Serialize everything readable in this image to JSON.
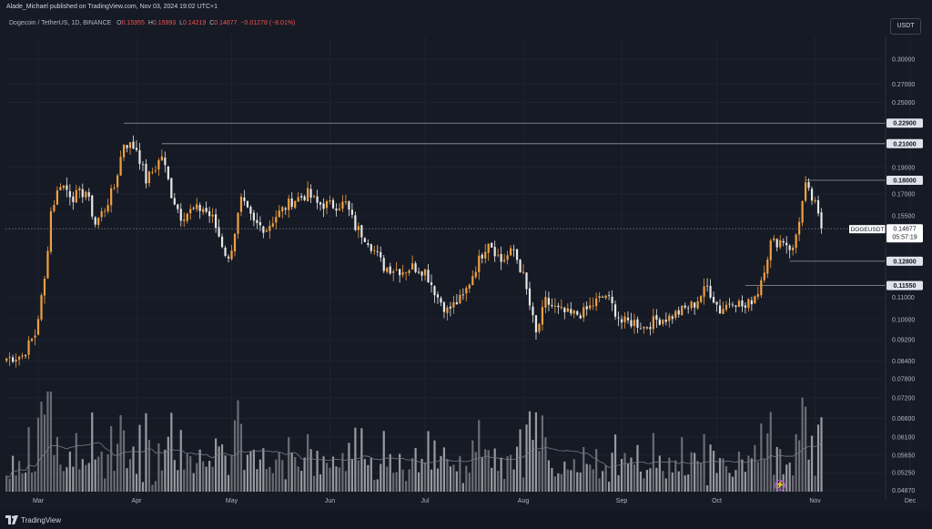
{
  "header": {
    "publisher": "Alade_Michael published on TradingView.com, Nov 03, 2024 19:02 UTC+1"
  },
  "legend": {
    "symbol": "Dogecoin / TetherUS, 1D, BINANCE",
    "open_label": "O",
    "open": "0.15955",
    "high_label": "H",
    "high": "0.15993",
    "low_label": "L",
    "low": "0.14219",
    "close_label": "C",
    "close": "0.14677",
    "change": "−0.01278 (−8.01%)"
  },
  "currency_button": "USDT",
  "footer": {
    "brand": "TradingView"
  },
  "colors": {
    "background": "#161a25",
    "up": "#f0a040",
    "down": "#e8e8e8",
    "grid": "#1f2330",
    "level_line": "#9598a1",
    "volume_up": "#7a7a80",
    "volume_down": "#b0b0b5",
    "volume_ma": "#777b85",
    "accent_bolt": "#b24dd3"
  },
  "icons": {
    "logo": "tradingview-logo-icon",
    "bolt": "lightning-bolt-icon"
  },
  "chart_data": {
    "type": "candlestick",
    "symbol": "DOGEUSDT",
    "interval": "1D",
    "y_scale": "log",
    "ylim": [
      0.047,
      0.33
    ],
    "y_ticks": [
      "0.30000",
      "0.27000",
      "0.25000",
      "0.19000",
      "0.17000",
      "0.15500",
      "0.11000",
      "0.10000",
      "0.09200",
      "0.08400",
      "0.07800",
      "0.07200",
      "0.06600",
      "0.06100",
      "0.05650",
      "0.05250",
      "0.04870"
    ],
    "x_labels": [
      {
        "label": "Mar",
        "date": "2024-03-01"
      },
      {
        "label": "Apr",
        "date": "2024-04-01"
      },
      {
        "label": "May",
        "date": "2024-05-01"
      },
      {
        "label": "Jun",
        "date": "2024-06-01"
      },
      {
        "label": "Jul",
        "date": "2024-07-01"
      },
      {
        "label": "Aug",
        "date": "2024-08-01"
      },
      {
        "label": "Sep",
        "date": "2024-09-01"
      },
      {
        "label": "Oct",
        "date": "2024-10-01"
      },
      {
        "label": "Nov",
        "date": "2024-11-01"
      },
      {
        "label": "Dec",
        "date": "2024-12-01"
      }
    ],
    "horizontal_levels": [
      {
        "price": 0.229,
        "label": "0.22900",
        "from": "2024-03-28"
      },
      {
        "price": 0.21,
        "label": "0.21000",
        "from": "2024-04-09"
      },
      {
        "price": 0.18,
        "label": "0.18000",
        "from": "2024-10-29"
      },
      {
        "price": 0.128,
        "label": "0.12800",
        "from": "2024-10-24"
      },
      {
        "price": 0.1155,
        "label": "0.11550",
        "from": "2024-10-10"
      }
    ],
    "last_price": {
      "label": "DOGEUSDT",
      "value": "0.14677",
      "countdown": "05:57:19",
      "price": 0.14677
    },
    "start_date": "2024-02-20",
    "anchors": [
      [
        "2024-02-20",
        0.085
      ],
      [
        "2024-02-25",
        0.086
      ],
      [
        "2024-02-29",
        0.094
      ],
      [
        "2024-03-03",
        0.118
      ],
      [
        "2024-03-05",
        0.158
      ],
      [
        "2024-03-08",
        0.178
      ],
      [
        "2024-03-12",
        0.168
      ],
      [
        "2024-03-16",
        0.172
      ],
      [
        "2024-03-19",
        0.15
      ],
      [
        "2024-03-22",
        0.16
      ],
      [
        "2024-03-25",
        0.175
      ],
      [
        "2024-03-28",
        0.211
      ],
      [
        "2024-04-01",
        0.206
      ],
      [
        "2024-04-04",
        0.18
      ],
      [
        "2024-04-07",
        0.19
      ],
      [
        "2024-04-09",
        0.2
      ],
      [
        "2024-04-12",
        0.17
      ],
      [
        "2024-04-15",
        0.155
      ],
      [
        "2024-04-18",
        0.158
      ],
      [
        "2024-04-22",
        0.16
      ],
      [
        "2024-04-25",
        0.153
      ],
      [
        "2024-04-30",
        0.128
      ],
      [
        "2024-05-04",
        0.165
      ],
      [
        "2024-05-08",
        0.15
      ],
      [
        "2024-05-12",
        0.147
      ],
      [
        "2024-05-15",
        0.155
      ],
      [
        "2024-05-20",
        0.165
      ],
      [
        "2024-05-25",
        0.17
      ],
      [
        "2024-05-28",
        0.163
      ],
      [
        "2024-06-02",
        0.162
      ],
      [
        "2024-06-06",
        0.163
      ],
      [
        "2024-06-09",
        0.148
      ],
      [
        "2024-06-13",
        0.14
      ],
      [
        "2024-06-18",
        0.125
      ],
      [
        "2024-06-24",
        0.123
      ],
      [
        "2024-06-27",
        0.125
      ],
      [
        "2024-07-01",
        0.123
      ],
      [
        "2024-07-05",
        0.11
      ],
      [
        "2024-07-08",
        0.104
      ],
      [
        "2024-07-13",
        0.11
      ],
      [
        "2024-07-17",
        0.125
      ],
      [
        "2024-07-21",
        0.14
      ],
      [
        "2024-07-25",
        0.128
      ],
      [
        "2024-07-29",
        0.134
      ],
      [
        "2024-08-01",
        0.12
      ],
      [
        "2024-08-05",
        0.094
      ],
      [
        "2024-08-08",
        0.108
      ],
      [
        "2024-08-12",
        0.104
      ],
      [
        "2024-08-16",
        0.102
      ],
      [
        "2024-08-20",
        0.103
      ],
      [
        "2024-08-24",
        0.108
      ],
      [
        "2024-08-27",
        0.111
      ],
      [
        "2024-09-01",
        0.099
      ],
      [
        "2024-09-05",
        0.099
      ],
      [
        "2024-09-08",
        0.097
      ],
      [
        "2024-09-12",
        0.1
      ],
      [
        "2024-09-16",
        0.101
      ],
      [
        "2024-09-20",
        0.104
      ],
      [
        "2024-09-24",
        0.107
      ],
      [
        "2024-09-28",
        0.115
      ],
      [
        "2024-10-02",
        0.104
      ],
      [
        "2024-10-06",
        0.109
      ],
      [
        "2024-10-10",
        0.105
      ],
      [
        "2024-10-14",
        0.113
      ],
      [
        "2024-10-18",
        0.138
      ],
      [
        "2024-10-22",
        0.14
      ],
      [
        "2024-10-25",
        0.134
      ],
      [
        "2024-10-29",
        0.175
      ],
      [
        "2024-11-01",
        0.162
      ],
      [
        "2024-11-03",
        0.14677
      ]
    ]
  }
}
